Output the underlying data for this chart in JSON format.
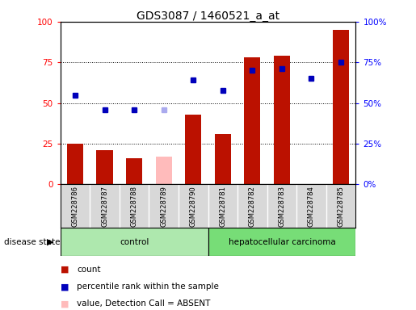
{
  "title": "GDS3087 / 1460521_a_at",
  "samples": [
    "GSM228786",
    "GSM228787",
    "GSM228788",
    "GSM228789",
    "GSM228790",
    "GSM228781",
    "GSM228782",
    "GSM228783",
    "GSM228784",
    "GSM228785"
  ],
  "bar_values": [
    25,
    21,
    16,
    0,
    43,
    31,
    78,
    79,
    0,
    95
  ],
  "absent_bar_values": [
    0,
    0,
    0,
    17,
    0,
    0,
    0,
    0,
    0,
    0
  ],
  "dot_values": [
    55,
    46,
    46,
    0,
    64,
    58,
    70,
    71,
    65,
    75
  ],
  "dot_absent": [
    0,
    0,
    0,
    46,
    0,
    0,
    0,
    0,
    0,
    0
  ],
  "dot_present": [
    true,
    true,
    true,
    false,
    true,
    true,
    true,
    true,
    true,
    true
  ],
  "groups": [
    {
      "label": "control",
      "n": 5,
      "color": "#aee8ae"
    },
    {
      "label": "hepatocellular carcinoma",
      "n": 5,
      "color": "#77dd77"
    }
  ],
  "ylim": [
    0,
    100
  ],
  "yticks": [
    0,
    25,
    50,
    75,
    100
  ],
  "bar_color_present": "#bb1100",
  "bar_color_absent": "#ffbbbb",
  "dot_color_present": "#0000bb",
  "dot_color_absent": "#aaaaee",
  "plot_bg_color": "#ffffff",
  "label_bg_color": "#d8d8d8",
  "grid_yticks": [
    25,
    50,
    75
  ]
}
